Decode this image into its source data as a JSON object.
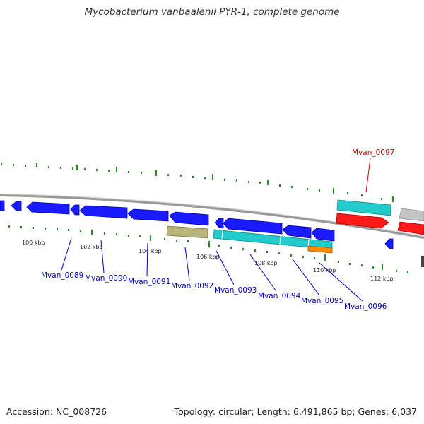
{
  "title": "Mycobacterium vanbaalenii PYR-1, complete genome",
  "footer": {
    "accession": "Accession: NC_008726",
    "summary": "Topology: circular; Length: 6,491,865 bp; Genes: 6,037"
  },
  "colors": {
    "cds": "#1a1aff",
    "rna": "#ff0000",
    "cyan_feature": "#22cccc",
    "khaki_feature": "#b8b47a",
    "orange_feature": "#ff8c00",
    "gray_feature": "#c0c0c0",
    "backbone": "#888888",
    "gc_tick": "#2a8a2a",
    "label_blue": "#0000bb",
    "label_red": "#cc0000"
  },
  "tick_labels": [
    "100 kbp",
    "102 kbp",
    "104 kbp",
    "106 kbp",
    "108 kbp",
    "110 kbp",
    "112 kbp"
  ],
  "gene_labels": [
    {
      "name": "Mvan_0089",
      "color": "blue"
    },
    {
      "name": "Mvan_0090",
      "color": "blue"
    },
    {
      "name": "Mvan_0091",
      "color": "blue"
    },
    {
      "name": "Mvan_0092",
      "color": "blue"
    },
    {
      "name": "Mvan_0093",
      "color": "blue"
    },
    {
      "name": "Mvan_0094",
      "color": "blue"
    },
    {
      "name": "Mvan_0095",
      "color": "blue"
    },
    {
      "name": "Mvan_0096",
      "color": "blue"
    },
    {
      "name": "Mvan_0097",
      "color": "red"
    }
  ]
}
